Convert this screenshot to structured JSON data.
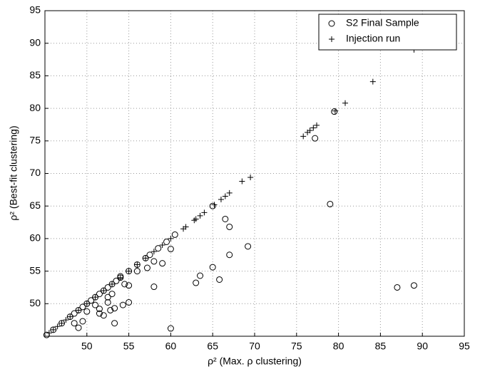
{
  "chart_data": {
    "type": "scatter",
    "xlabel": "ρ²  (Max. ρ clustering)",
    "ylabel": "ρ²  (Best-fit clustering)",
    "xlim": [
      45,
      95
    ],
    "ylim": [
      45,
      95
    ],
    "xticks": [
      50,
      55,
      60,
      65,
      70,
      75,
      80,
      85,
      90,
      95
    ],
    "yticks": [
      50,
      55,
      60,
      65,
      70,
      75,
      80,
      85,
      90,
      95
    ],
    "grid": true,
    "legend": "northeast",
    "series": [
      {
        "name": "S2 Final Sample",
        "color": "#000000",
        "marker": "circle",
        "x": [
          77.2,
          79,
          87,
          89,
          60,
          53.3,
          65,
          67,
          69.2,
          66.5,
          67,
          63.5,
          63,
          65.8,
          58,
          59,
          57.2,
          58,
          55,
          54.3,
          53.3,
          52.8,
          52.5,
          51.5,
          51,
          52,
          51.5,
          49.5,
          49,
          48.5,
          50,
          55,
          54,
          56,
          57,
          60.5,
          60,
          79.5,
          65,
          45.2,
          46,
          47,
          48,
          48.5,
          49,
          49.5,
          50,
          50.5,
          51,
          51.5,
          52,
          52.5,
          53,
          53.5,
          54,
          55,
          56,
          57.5,
          58.5,
          59.5,
          53,
          52.5,
          54.5
        ],
        "values": [
          75.4,
          65.3,
          52.5,
          52.8,
          46.2,
          47,
          55.6,
          57.5,
          58.8,
          63,
          61.8,
          54.3,
          53.2,
          53.7,
          52.6,
          56.2,
          55.5,
          56.5,
          50.2,
          49.8,
          49.3,
          49,
          50.2,
          49.2,
          49.8,
          48.2,
          48.5,
          47.3,
          46.3,
          47,
          48.8,
          52.8,
          54.2,
          55,
          57,
          60.6,
          58.4,
          79.5,
          65,
          45.2,
          46,
          47,
          48,
          48.5,
          49,
          49.5,
          50,
          50.5,
          51,
          51.5,
          52,
          52.5,
          53,
          53.5,
          54,
          55,
          56,
          57.5,
          58.5,
          59.5,
          51.5,
          51,
          53
        ]
      },
      {
        "name": "Injection run",
        "color": "#000000",
        "marker": "plus",
        "x": [
          45.5,
          46,
          46.5,
          47,
          47.5,
          48,
          49,
          50,
          51,
          52,
          53,
          54,
          55,
          56,
          57,
          58,
          59,
          60,
          61.5,
          61.8,
          62.8,
          63,
          63.5,
          64,
          65.2,
          66,
          66.5,
          67,
          68.5,
          69.5,
          75.8,
          76.3,
          76.6,
          77,
          77.4,
          79.6,
          80.8,
          84.1,
          89
        ],
        "values": [
          45.5,
          46,
          46.5,
          47,
          47.5,
          48,
          49,
          50,
          51,
          52,
          53,
          54,
          55,
          56,
          57,
          58,
          59,
          60,
          61.5,
          61.8,
          62.8,
          63,
          63.5,
          64,
          65.2,
          66,
          66.5,
          67,
          68.8,
          69.4,
          75.7,
          76.3,
          76.6,
          77,
          77.4,
          79.6,
          80.8,
          84.1,
          89
        ]
      }
    ]
  }
}
